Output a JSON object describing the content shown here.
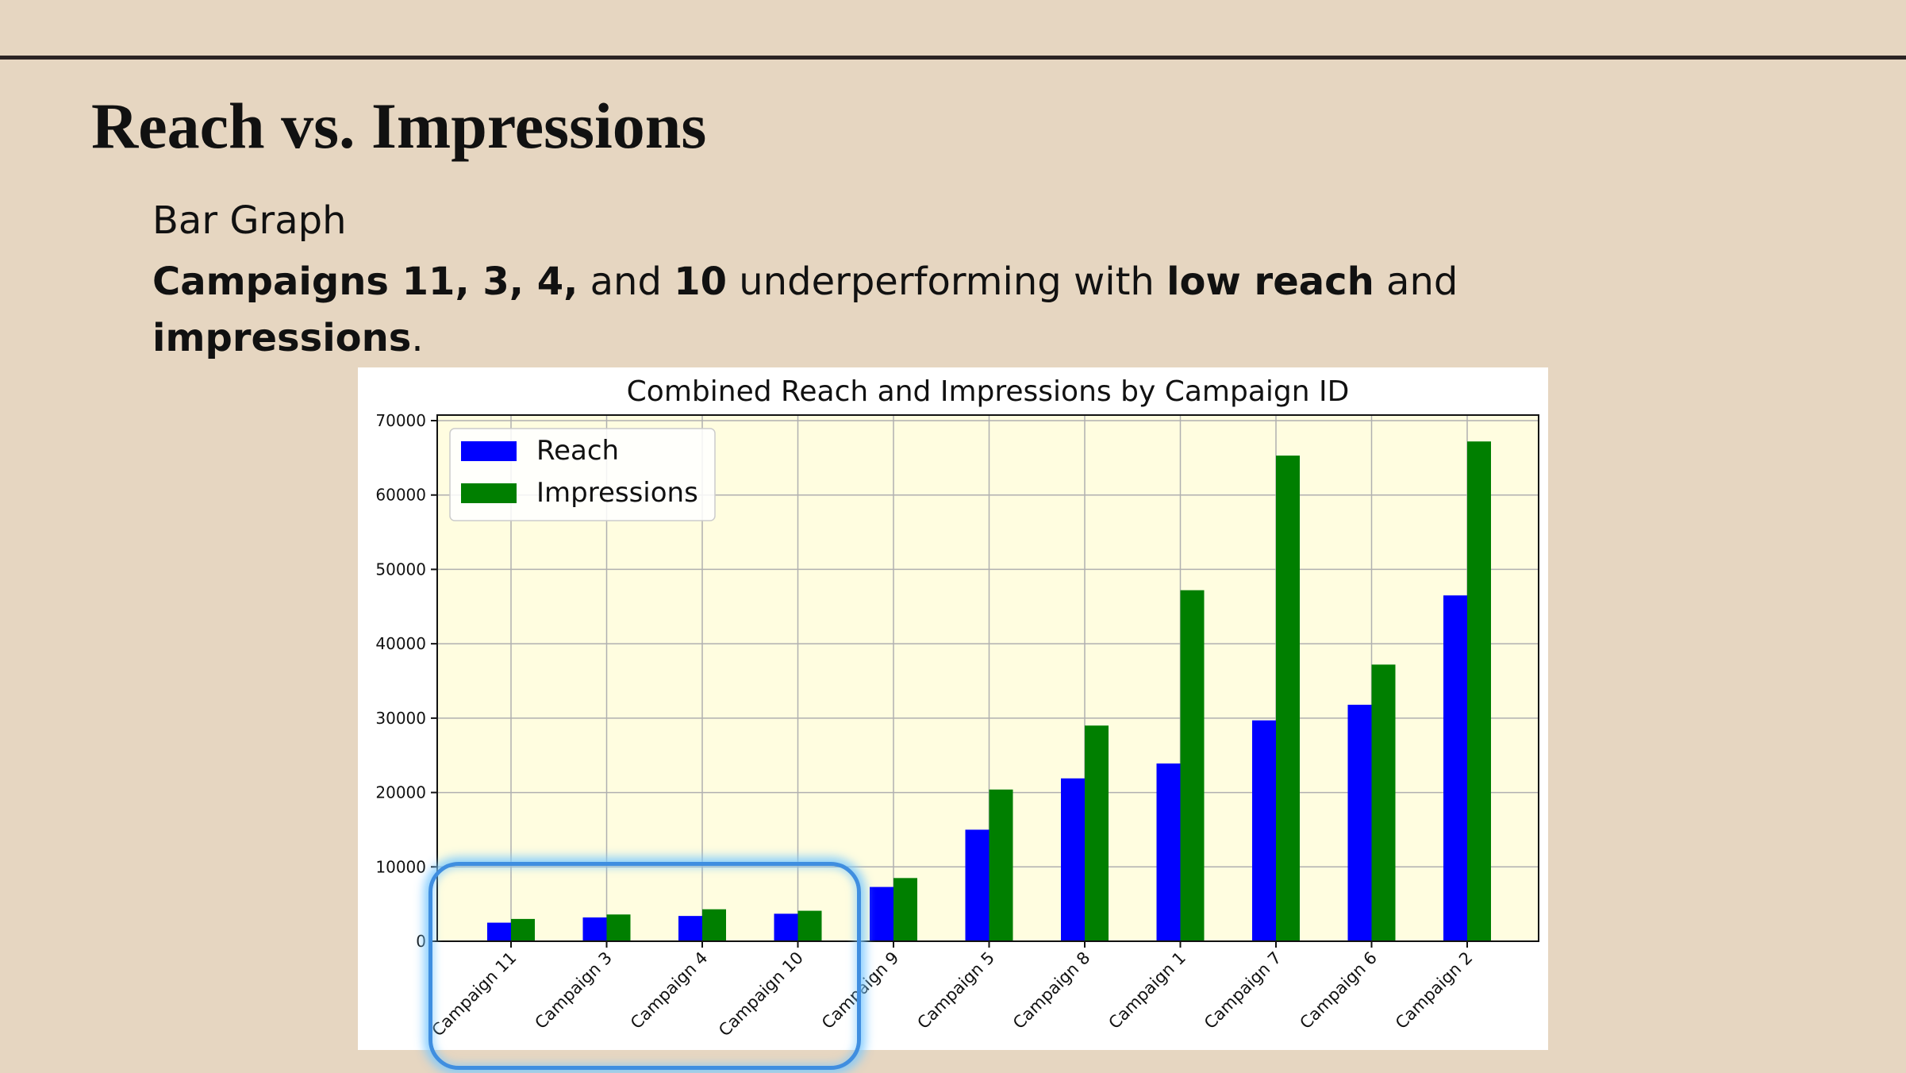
{
  "slide": {
    "title": "Reach vs. Impressions",
    "subtitle": "Bar Graph",
    "note": {
      "p1": "Campaigns 11, 3, 4,",
      "p2": " and ",
      "p3": "10",
      "p4": " underperforming with ",
      "p5": "low reach",
      "p6": " and ",
      "p7": "impressions",
      "p8": "."
    }
  },
  "chart_data": {
    "type": "bar",
    "title": "Combined Reach and Impressions by Campaign ID",
    "xlabel": "",
    "ylabel": "",
    "ylim": [
      0,
      70000
    ],
    "yticks": [
      0,
      10000,
      20000,
      30000,
      40000,
      50000,
      60000,
      70000
    ],
    "grid": true,
    "legend_position": "top-left",
    "plot_background": "#fffde0",
    "categories": [
      "Campaign 11",
      "Campaign 3",
      "Campaign 4",
      "Campaign 10",
      "Campaign 9",
      "Campaign 5",
      "Campaign 8",
      "Campaign 1",
      "Campaign 7",
      "Campaign 6",
      "Campaign 2"
    ],
    "series": [
      {
        "name": "Reach",
        "color": "#0000ff",
        "values": [
          2500,
          3200,
          3400,
          3700,
          7300,
          15000,
          21900,
          23900,
          29700,
          31800,
          46500
        ]
      },
      {
        "name": "Impressions",
        "color": "#007f00",
        "values": [
          3000,
          3600,
          4300,
          4100,
          8500,
          20400,
          29000,
          47200,
          65300,
          37200,
          67200
        ]
      }
    ],
    "highlighted_categories": [
      "Campaign 11",
      "Campaign 3",
      "Campaign 4",
      "Campaign 10"
    ],
    "highlight_color": "#3f8ee0"
  }
}
